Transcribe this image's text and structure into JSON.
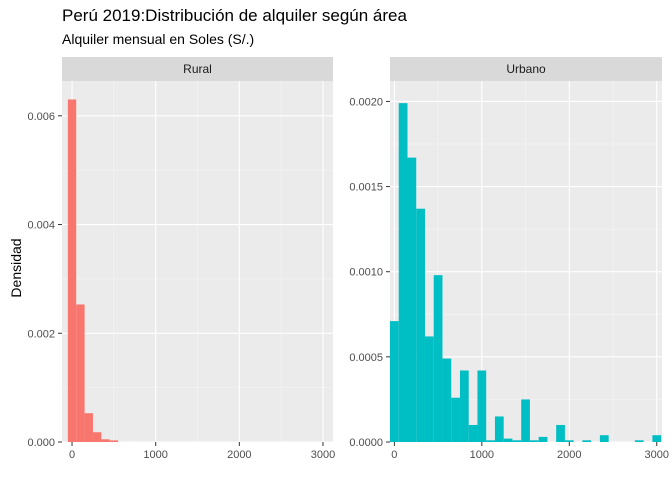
{
  "chart_data": {
    "type": "bar",
    "title": "Perú 2019:Distribución de alquiler según área",
    "subtitle": "Alquiler mensual en Soles (S/.)",
    "ylabel": "Densidad",
    "xlabel": "",
    "bin_width": 100,
    "legend": "none",
    "grid": true,
    "panels": [
      {
        "name": "Rural",
        "xlim": [
          -120,
          3120
        ],
        "ylim": [
          0,
          0.00664
        ],
        "x_ticks": [
          0,
          1000,
          2000,
          3000
        ],
        "x_tick_labels": [
          "0",
          "1000",
          "2000",
          "3000"
        ],
        "y_ticks": [
          0,
          0.002,
          0.004,
          0.006
        ],
        "y_tick_labels": [
          "0.000",
          "0.002",
          "0.004",
          "0.006"
        ],
        "color": "#F8766D",
        "bins": [
          0,
          100,
          200,
          300,
          400,
          500
        ],
        "values": [
          0.0063,
          0.00253,
          0.00053,
          0.00018,
          5e-05,
          3e-05
        ]
      },
      {
        "name": "Urbano",
        "xlim": [
          -50,
          3060
        ],
        "ylim": [
          0,
          0.00212
        ],
        "x_ticks": [
          0,
          1000,
          2000,
          3000
        ],
        "x_tick_labels": [
          "0",
          "1000",
          "2000",
          "3000"
        ],
        "y_ticks": [
          0,
          0.0005,
          0.001,
          0.0015,
          0.002
        ],
        "y_tick_labels": [
          "0.0000",
          "0.0005",
          "0.0010",
          "0.0015",
          "0.0020"
        ],
        "color": "#00BFC4",
        "bins": [
          0,
          100,
          200,
          300,
          400,
          500,
          600,
          700,
          800,
          900,
          1000,
          1100,
          1200,
          1300,
          1400,
          1500,
          1600,
          1700,
          1800,
          1900,
          2000,
          2100,
          2200,
          2300,
          2400,
          2500,
          2600,
          2700,
          2800,
          2900,
          3000
        ],
        "values": [
          0.00071,
          0.00199,
          0.00167,
          0.00137,
          0.00062,
          0.00098,
          0.00049,
          0.00026,
          0.00042,
          0.0001,
          0.00042,
          1e-05,
          0.00015,
          2e-05,
          1e-05,
          0.00025,
          1e-05,
          3e-05,
          0.0,
          0.0001,
          1e-05,
          0.0,
          1e-05,
          0.0,
          4e-05,
          0.0,
          0.0,
          0.0,
          1e-05,
          0.0,
          4e-05
        ]
      }
    ]
  }
}
